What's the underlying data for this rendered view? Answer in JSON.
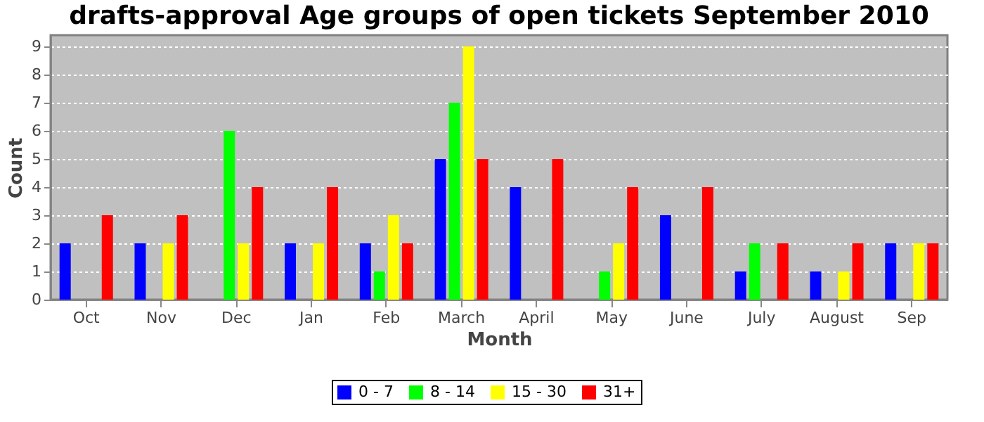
{
  "chart_data": {
    "type": "bar",
    "title": "drafts-approval Age groups of open tickets September 2010",
    "xlabel": "Month",
    "ylabel": "Count",
    "categories": [
      "Oct",
      "Nov",
      "Dec",
      "Jan",
      "Feb",
      "March",
      "April",
      "May",
      "June",
      "July",
      "August",
      "Sep"
    ],
    "series": [
      {
        "name": "0 - 7",
        "color": "#0000ff",
        "values": [
          2,
          2,
          0,
          2,
          2,
          5,
          4,
          0,
          3,
          1,
          1,
          2
        ]
      },
      {
        "name": "8 - 14",
        "color": "#00ff00",
        "values": [
          0,
          0,
          6,
          0,
          1,
          7,
          0,
          1,
          0,
          2,
          0,
          0
        ]
      },
      {
        "name": "15 - 30",
        "color": "#ffff00",
        "values": [
          0,
          2,
          2,
          2,
          3,
          9,
          0,
          2,
          0,
          0,
          1,
          2
        ]
      },
      {
        "name": "31+",
        "color": "#ff0000",
        "values": [
          3,
          3,
          4,
          4,
          2,
          5,
          5,
          4,
          4,
          2,
          2,
          2
        ]
      }
    ],
    "ylim": [
      0,
      9.4
    ],
    "yticks": [
      0,
      1,
      2,
      3,
      4,
      5,
      6,
      7,
      8,
      9
    ],
    "grid": "y",
    "legend": "bottom"
  }
}
